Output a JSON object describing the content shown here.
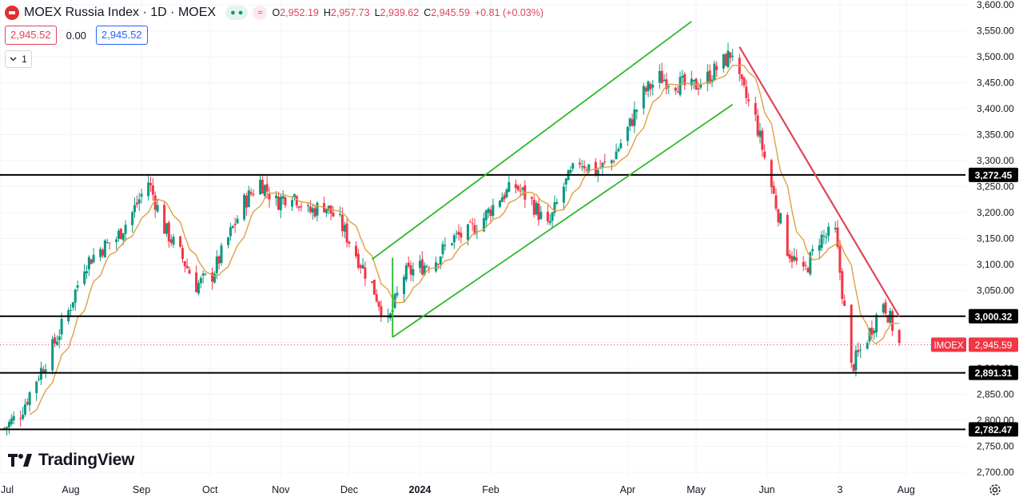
{
  "legend": {
    "title": "MOEX Russia Index · 1D · MOEX",
    "eye_icon": "eye-icon",
    "indicator_icon": "wave-icon",
    "open_label": "O",
    "open": "2,952.19",
    "high_label": "H",
    "high": "2,957.73",
    "low_label": "L",
    "low": "2,939.62",
    "close_label": "C",
    "close": "2,945.59",
    "change": "+0.81 (+0.03%)"
  },
  "quote": {
    "bid": "2,945.52",
    "spread": "0.00",
    "ask": "2,945.52"
  },
  "collapse": {
    "icon": "chevron-down-icon",
    "count": "1"
  },
  "branding": {
    "name": "TradingView"
  },
  "colors": {
    "up": "#089981",
    "down": "#f23645",
    "ma": "#e0a040",
    "channel": "#2eb82e",
    "trendline": "#e0455a",
    "hline": "#000000"
  },
  "chart_data": {
    "type": "candlestick",
    "symbol": "IMOEX",
    "ylim": [
      2700,
      3600
    ],
    "y_ticks": [
      2700,
      2750,
      2800,
      2850,
      2900,
      2950,
      3000,
      3050,
      3100,
      3150,
      3200,
      3250,
      3300,
      3350,
      3400,
      3450,
      3500,
      3550,
      3600
    ],
    "y_tick_labels": [
      "2,700.00",
      "2,750.00",
      "2,800.00",
      "2,850.00",
      "2,900.00",
      "2,950.00",
      "3,000.00",
      "3,050.00",
      "3,100.00",
      "3,150.00",
      "3,200.00",
      "3,250.00",
      "3,300.00",
      "3,350.00",
      "3,400.00",
      "3,450.00",
      "3,500.00",
      "3,550.00",
      "3,600.00"
    ],
    "x_ticks": [
      {
        "label": "Jul",
        "date": "2023-07-01"
      },
      {
        "label": "Aug",
        "date": "2023-08-01"
      },
      {
        "label": "Sep",
        "date": "2023-09-01"
      },
      {
        "label": "Oct",
        "date": "2023-10-01"
      },
      {
        "label": "Nov",
        "date": "2023-11-01"
      },
      {
        "label": "Dec",
        "date": "2023-12-01"
      },
      {
        "label": "2024",
        "date": "2024-01-01",
        "bold": true
      },
      {
        "label": "Feb",
        "date": "2024-02-01"
      },
      {
        "label": "Apr",
        "date": "2024-04-01"
      },
      {
        "label": "May",
        "date": "2024-05-01"
      },
      {
        "label": "Jun",
        "date": "2024-06-01"
      },
      {
        "label": "3",
        "date": "2024-07-03"
      },
      {
        "label": "Aug",
        "date": "2024-08-01"
      }
    ],
    "x_range": [
      "2023-07-01",
      "2024-08-27"
    ],
    "horizontal_lines": [
      {
        "value": 3272.45,
        "label": "3,272.45"
      },
      {
        "value": 3000.32,
        "label": "3,000.32"
      },
      {
        "value": 2891.31,
        "label": "2,891.31"
      },
      {
        "value": 2782.47,
        "label": "2,782.47"
      }
    ],
    "last_price": {
      "value": 2945.59,
      "label": "2,945.59",
      "symbol_label": "IMOEX"
    },
    "channel_upper": [
      {
        "date": "2023-12-11",
        "value": 3110
      },
      {
        "date": "2024-04-29",
        "value": 3568
      }
    ],
    "channel_lower": [
      {
        "date": "2023-12-20",
        "value": 2960
      },
      {
        "date": "2024-05-17",
        "value": 3408
      }
    ],
    "channel_base": [
      {
        "date": "2023-12-20",
        "value": 3113
      },
      {
        "date": "2023-12-20",
        "value": 2960
      }
    ],
    "trendline": [
      {
        "date": "2024-05-20",
        "value": 3519
      },
      {
        "date": "2024-07-29",
        "value": 3000
      }
    ],
    "moving_average_period": 10,
    "close_anchors": [
      {
        "date": "2023-07-03",
        "value": 2785
      },
      {
        "date": "2023-07-10",
        "value": 2815
      },
      {
        "date": "2023-07-17",
        "value": 2880
      },
      {
        "date": "2023-07-24",
        "value": 2940
      },
      {
        "date": "2023-07-31",
        "value": 3010
      },
      {
        "date": "2023-08-07",
        "value": 3100
      },
      {
        "date": "2023-08-14",
        "value": 3130
      },
      {
        "date": "2023-08-21",
        "value": 3150
      },
      {
        "date": "2023-08-28",
        "value": 3200
      },
      {
        "date": "2023-09-04",
        "value": 3260
      },
      {
        "date": "2023-09-11",
        "value": 3170
      },
      {
        "date": "2023-09-18",
        "value": 3120
      },
      {
        "date": "2023-09-25",
        "value": 3060
      },
      {
        "date": "2023-10-02",
        "value": 3080
      },
      {
        "date": "2023-10-09",
        "value": 3150
      },
      {
        "date": "2023-10-16",
        "value": 3220
      },
      {
        "date": "2023-10-23",
        "value": 3260
      },
      {
        "date": "2023-10-30",
        "value": 3220
      },
      {
        "date": "2023-11-06",
        "value": 3240
      },
      {
        "date": "2023-11-13",
        "value": 3200
      },
      {
        "date": "2023-11-20",
        "value": 3215
      },
      {
        "date": "2023-11-27",
        "value": 3180
      },
      {
        "date": "2023-12-04",
        "value": 3120
      },
      {
        "date": "2023-12-11",
        "value": 3060
      },
      {
        "date": "2023-12-18",
        "value": 2985
      },
      {
        "date": "2023-12-25",
        "value": 3080
      },
      {
        "date": "2024-01-08",
        "value": 3110
      },
      {
        "date": "2024-01-15",
        "value": 3150
      },
      {
        "date": "2024-01-22",
        "value": 3160
      },
      {
        "date": "2024-01-29",
        "value": 3190
      },
      {
        "date": "2024-02-05",
        "value": 3230
      },
      {
        "date": "2024-02-12",
        "value": 3250
      },
      {
        "date": "2024-02-19",
        "value": 3220
      },
      {
        "date": "2024-02-26",
        "value": 3170
      },
      {
        "date": "2024-03-04",
        "value": 3250
      },
      {
        "date": "2024-03-11",
        "value": 3300
      },
      {
        "date": "2024-03-18",
        "value": 3280
      },
      {
        "date": "2024-03-25",
        "value": 3300
      },
      {
        "date": "2024-04-01",
        "value": 3360
      },
      {
        "date": "2024-04-08",
        "value": 3430
      },
      {
        "date": "2024-04-15",
        "value": 3460
      },
      {
        "date": "2024-04-22",
        "value": 3450
      },
      {
        "date": "2024-04-29",
        "value": 3440
      },
      {
        "date": "2024-05-06",
        "value": 3460
      },
      {
        "date": "2024-05-13",
        "value": 3490
      },
      {
        "date": "2024-05-17",
        "value": 3510
      },
      {
        "date": "2024-05-20",
        "value": 3450
      },
      {
        "date": "2024-05-27",
        "value": 3380
      },
      {
        "date": "2024-06-03",
        "value": 3250
      },
      {
        "date": "2024-06-10",
        "value": 3130
      },
      {
        "date": "2024-06-17",
        "value": 3080
      },
      {
        "date": "2024-06-24",
        "value": 3150
      },
      {
        "date": "2024-07-01",
        "value": 3160
      },
      {
        "date": "2024-07-08",
        "value": 2900
      },
      {
        "date": "2024-07-15",
        "value": 2960
      },
      {
        "date": "2024-07-22",
        "value": 3030
      },
      {
        "date": "2024-07-29",
        "value": 2945
      }
    ]
  }
}
